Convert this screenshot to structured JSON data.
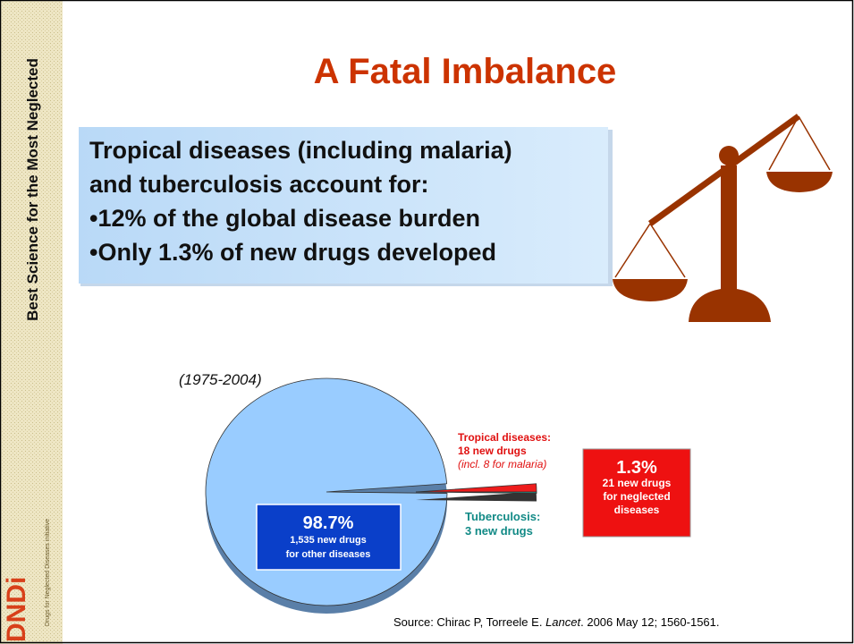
{
  "sidebar": {
    "tagline": "Best Science for the Most Neglected",
    "logo": "DNDi",
    "logo_subtitle": "Drugs for Neglected Diseases initiative"
  },
  "title": "A Fatal Imbalance",
  "callout": {
    "lines": [
      "Tropical diseases (including malaria)",
      "and tuberculosis account for:",
      "•12% of the global disease burden",
      "•Only 1.3% of new drugs developed"
    ]
  },
  "chart_data": {
    "type": "pie",
    "subtitle": "(1975-2004)",
    "values": [
      1535,
      18,
      3
    ],
    "colors": [
      "#99ccff",
      "#ee1c1c",
      "#1a9b8f"
    ],
    "explode": [
      false,
      true,
      true
    ],
    "labels": {
      "other": [
        "98.7%",
        "1,535 new drugs",
        "for other diseases"
      ],
      "tropical": [
        "Tropical diseases:",
        "18 new drugs",
        "(incl. 8 for malaria)"
      ],
      "tuberculosis": [
        "Tuberculosis:",
        "3 new drugs"
      ],
      "neglected": [
        "1.3%",
        "21 new drugs",
        "for neglected",
        "diseases"
      ]
    }
  },
  "source": [
    "Source: Chirac P, Torreele E. ",
    "Lancet",
    ". 2006 May 12; 1560-1561."
  ]
}
